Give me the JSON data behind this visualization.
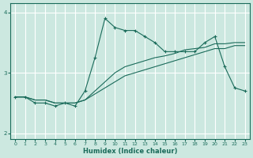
{
  "xlabel": "Humidex (Indice chaleur)",
  "bg_color": "#cce8e0",
  "grid_color": "#ffffff",
  "line_color": "#1a6b5a",
  "xlim": [
    -0.5,
    23.5
  ],
  "ylim": [
    1.9,
    4.15
  ],
  "yticks": [
    2,
    3,
    4
  ],
  "xticks": [
    0,
    1,
    2,
    3,
    4,
    5,
    6,
    7,
    8,
    9,
    10,
    11,
    12,
    13,
    14,
    15,
    16,
    17,
    18,
    19,
    20,
    21,
    22,
    23
  ],
  "series1_x": [
    0,
    1,
    2,
    3,
    4,
    5,
    6,
    7,
    8,
    9,
    10,
    11,
    12,
    13,
    14,
    15,
    16,
    17,
    18,
    19,
    20,
    21,
    22,
    23
  ],
  "series1_y": [
    2.6,
    2.6,
    2.5,
    2.5,
    2.45,
    2.5,
    2.45,
    2.7,
    3.25,
    3.9,
    3.75,
    3.7,
    3.7,
    3.6,
    3.5,
    3.35,
    3.35,
    3.35,
    3.35,
    3.5,
    3.6,
    3.1,
    2.75,
    2.7
  ],
  "series2_x": [
    0,
    1,
    2,
    3,
    4,
    5,
    6,
    7,
    8,
    9,
    10,
    11,
    12,
    13,
    14,
    15,
    16,
    17,
    18,
    19,
    20,
    21,
    22,
    23
  ],
  "series2_y": [
    2.6,
    2.6,
    2.55,
    2.55,
    2.5,
    2.5,
    2.5,
    2.55,
    2.65,
    2.75,
    2.85,
    2.95,
    3.0,
    3.05,
    3.1,
    3.15,
    3.2,
    3.25,
    3.3,
    3.35,
    3.4,
    3.4,
    3.45,
    3.45
  ],
  "series3_x": [
    0,
    1,
    2,
    3,
    4,
    5,
    6,
    7,
    8,
    9,
    10,
    11,
    12,
    13,
    14,
    15,
    16,
    17,
    18,
    19,
    20,
    21,
    22,
    23
  ],
  "series3_y": [
    2.6,
    2.6,
    2.55,
    2.55,
    2.5,
    2.5,
    2.5,
    2.55,
    2.7,
    2.85,
    3.0,
    3.1,
    3.15,
    3.2,
    3.25,
    3.28,
    3.32,
    3.38,
    3.4,
    3.42,
    3.48,
    3.48,
    3.5,
    3.5
  ]
}
